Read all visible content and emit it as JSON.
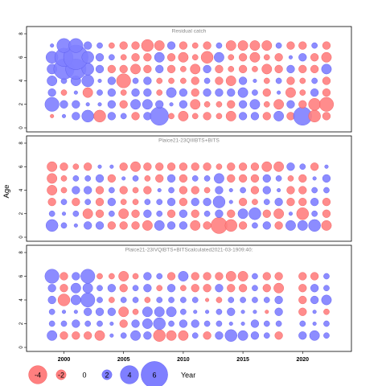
{
  "chart_data": [
    {
      "type": "scatter",
      "title": "Residual catch",
      "x_ticks": [
        "2000",
        "2005",
        "2010",
        "2015",
        "2020"
      ],
      "y_ticks": [
        "0",
        "2",
        "4",
        "6",
        "8"
      ],
      "ylim": [
        0,
        8
      ],
      "years": [
        1999,
        2000,
        2001,
        2002,
        2003,
        2004,
        2005,
        2006,
        2007,
        2008,
        2009,
        2010,
        2011,
        2012,
        2013,
        2014,
        2015,
        2016,
        2017,
        2018,
        2019,
        2020,
        2021,
        2022
      ],
      "ages": [
        1,
        2,
        3,
        4,
        5,
        6,
        7
      ],
      "residuals": {
        "1": [
          -0.5,
          0.5,
          1.5,
          2.5,
          -2.5,
          1.5,
          1.0,
          -1.5,
          1.5,
          4.0,
          -1.0,
          -2.0,
          -1.0,
          -1.5,
          -1.0,
          -2.0,
          1.5,
          1.5,
          -1.5,
          2.0,
          -1.5,
          4.0,
          -2.5,
          -1.5
        ],
        "2": [
          3.0,
          1.5,
          1.5,
          0.5,
          0.5,
          1.5,
          -1.5,
          2.0,
          2.0,
          1.5,
          0.5,
          1.5,
          -2.0,
          -1.0,
          -1.0,
          -1.5,
          1.5,
          2.0,
          -1.0,
          -2.0,
          1.5,
          -1.5,
          -2.5,
          -3.0
        ],
        "3": [
          1.5,
          -1.0,
          0.5,
          -2.0,
          1.0,
          1.5,
          -1.0,
          1.5,
          1.5,
          -1.0,
          2.0,
          1.5,
          -1.5,
          1.5,
          1.5,
          1.5,
          2.0,
          1.0,
          -1.5,
          0.5,
          -2.0,
          -1.0,
          1.5,
          -1.5
        ],
        "4": [
          2.0,
          1.0,
          2.0,
          2.5,
          0.5,
          1.5,
          -3.0,
          1.0,
          1.5,
          -1.0,
          -1.0,
          -1.0,
          -1.5,
          1.0,
          -1.5,
          -2.0,
          1.5,
          0.5,
          -1.0,
          1.0,
          -1.5,
          -1.0,
          1.0,
          -1.5
        ],
        "5": [
          2.0,
          4.5,
          4.5,
          2.5,
          1.5,
          -1.5,
          -1.5,
          -2.0,
          -1.5,
          1.5,
          -1.5,
          -1.0,
          -2.0,
          1.5,
          -1.5,
          -1.0,
          -1.5,
          -1.0,
          -2.0,
          -1.5,
          1.5,
          -1.5,
          -1.5,
          2.0
        ],
        "6": [
          2.5,
          4.0,
          5.5,
          2.5,
          1.5,
          1.0,
          -1.0,
          -1.5,
          -1.5,
          2.0,
          -1.5,
          -2.0,
          -1.0,
          -2.5,
          2.0,
          -1.0,
          -1.5,
          -2.0,
          -1.0,
          -1.5,
          0.5,
          1.5,
          -1.5,
          -2.0
        ],
        "7": [
          0.5,
          3.0,
          3.0,
          1.5,
          1.0,
          -1.0,
          -1.5,
          -1.5,
          -2.5,
          -2.0,
          1.5,
          -1.5,
          -1.0,
          -1.5,
          1.0,
          -2.0,
          -2.0,
          -2.0,
          -2.0,
          1.0,
          -1.5,
          -1.5,
          1.0,
          -1.5
        ]
      }
    },
    {
      "type": "scatter",
      "title": "Plaice21-23QIIIBTS+BITS",
      "x_ticks": [
        "2000",
        "2005",
        "2010",
        "2015",
        "2020"
      ],
      "y_ticks": [
        "0",
        "2",
        "4",
        "6",
        "8"
      ],
      "ylim": [
        0,
        8
      ],
      "years": [
        1999,
        2000,
        2001,
        2002,
        2003,
        2004,
        2005,
        2006,
        2007,
        2008,
        2009,
        2010,
        2011,
        2012,
        2013,
        2014,
        2015,
        2016,
        2017,
        2018,
        2019,
        2020,
        2021,
        2022
      ],
      "ages": [
        1,
        2,
        3,
        4,
        5,
        6
      ],
      "residuals": {
        "1": [
          2.5,
          1.0,
          0.5,
          1.5,
          1.5,
          -1.5,
          -1.5,
          -1.5,
          -2.0,
          2.0,
          1.5,
          1.5,
          -2.0,
          -1.5,
          -3.5,
          -2.5,
          -1.5,
          1.0,
          1.5,
          -1.5,
          2.0,
          2.0,
          2.5,
          -2.0
        ],
        "2": [
          1.0,
          0.5,
          1.0,
          -2.0,
          -1.5,
          1.0,
          -2.0,
          -1.5,
          1.5,
          1.0,
          -1.5,
          1.5,
          -1.5,
          1.0,
          1.5,
          -1.5,
          2.0,
          2.5,
          -1.5,
          -2.0,
          0.5,
          -2.5,
          1.0,
          -1.5
        ],
        "3": [
          -1.5,
          1.0,
          -1.5,
          1.0,
          -1.5,
          1.5,
          -1.0,
          -1.0,
          1.0,
          1.0,
          1.5,
          -1.5,
          1.5,
          1.5,
          2.5,
          0.5,
          -1.5,
          -1.0,
          1.0,
          1.5,
          -1.5,
          -1.5,
          1.5,
          -1.5
        ],
        "4": [
          -2.0,
          -1.0,
          1.5,
          1.5,
          -1.5,
          1.0,
          -1.5,
          -1.0,
          -1.5,
          0.5,
          1.0,
          -1.5,
          -1.5,
          -1.0,
          1.5,
          0.5,
          1.0,
          -1.5,
          1.5,
          0.5,
          -1.5,
          -1.5,
          1.0,
          1.0
        ],
        "5": [
          -2.0,
          -1.0,
          1.0,
          1.0,
          1.5,
          -1.5,
          0.5,
          1.0,
          -1.0,
          -1.5,
          1.5,
          -1.5,
          1.0,
          1.0,
          2.0,
          -1.5,
          -1.5,
          -1.5,
          1.5,
          1.0,
          -1.0,
          -1.5,
          0.5,
          1.5
        ],
        "6": [
          -2.0,
          -1.5,
          -1.0,
          -1.5,
          0.5,
          0.5,
          -1.5,
          -2.0,
          -1.5,
          -1.5,
          -1.5,
          -1.5,
          -1.5,
          -1.5,
          -1.0,
          -1.5,
          -1.5,
          -1.5,
          -2.0,
          -2.0,
          1.5,
          1.0,
          -1.5,
          0.5
        ]
      }
    },
    {
      "type": "scatter",
      "title": "Plaice21-23IVQIBTS+BITScalculated2021-03-1909:40:",
      "x_ticks": [
        "2000",
        "2005",
        "2010",
        "2015",
        "2020"
      ],
      "y_ticks": [
        "0",
        "2",
        "4",
        "6",
        "8"
      ],
      "ylim": [
        0,
        8
      ],
      "years": [
        1999,
        2000,
        2001,
        2002,
        2003,
        2004,
        2005,
        2006,
        2007,
        2008,
        2009,
        2010,
        2011,
        2012,
        2013,
        2014,
        2015,
        2016,
        2017,
        2018,
        2019,
        2020,
        2021,
        2022
      ],
      "ages": [
        1,
        2,
        3,
        4,
        5,
        6
      ],
      "residuals": {
        "1": [
          2.0,
          -1.5,
          -1.5,
          -1.5,
          -2.0,
          0.5,
          1.0,
          2.0,
          1.5,
          -2.5,
          -2.0,
          -2.0,
          1.0,
          -1.5,
          1.5,
          2.5,
          2.0,
          1.5,
          1.0,
          -1.5,
          null,
          1.5,
          2.0,
          1.0
        ],
        "2": [
          1.0,
          1.0,
          1.5,
          1.0,
          1.0,
          0.5,
          -1.5,
          1.5,
          2.0,
          2.5,
          1.0,
          1.5,
          1.5,
          1.0,
          1.0,
          0.5,
          0.5,
          1.5,
          1.0,
          1.0,
          null,
          1.0,
          0.5,
          1.0
        ],
        "3": [
          1.0,
          0.5,
          0.5,
          1.5,
          1.5,
          1.5,
          -2.0,
          -1.0,
          2.0,
          2.0,
          2.0,
          1.0,
          0.5,
          0.5,
          1.0,
          1.5,
          0.5,
          0.5,
          -0.5,
          1.5,
          null,
          -1.5,
          0.5,
          -1.0
        ],
        "4": [
          1.5,
          -2.5,
          2.0,
          3.0,
          1.0,
          -1.0,
          1.0,
          1.0,
          -1.0,
          1.0,
          1.0,
          1.0,
          1.0,
          -0.5,
          -1.0,
          1.0,
          1.0,
          1.0,
          1.0,
          1.5,
          null,
          -1.5,
          1.5,
          2.0
        ],
        "5": [
          1.5,
          -1.5,
          2.0,
          2.0,
          1.0,
          1.5,
          -1.5,
          1.0,
          1.5,
          -1.0,
          1.5,
          -1.0,
          -1.5,
          -1.5,
          1.5,
          -1.5,
          -1.5,
          1.0,
          -1.5,
          -2.0,
          null,
          -1.5,
          1.5,
          1.0
        ],
        "6": [
          3.0,
          -1.5,
          1.5,
          3.0,
          -1.0,
          -1.0,
          -2.0,
          -1.0,
          1.5,
          1.0,
          -1.5,
          2.0,
          -1.5,
          -1.5,
          -1.5,
          -2.0,
          -2.0,
          1.0,
          -1.5,
          -1.5,
          null,
          -1.5,
          -1.5,
          1.0
        ]
      }
    }
  ],
  "ylabel": "Age",
  "colors": {
    "positive": "#7f7fff",
    "positive_stroke": "#5555ee",
    "negative": "#ff7f7f",
    "negative_stroke": "#ee5555"
  },
  "legend": {
    "entries": [
      "-4",
      "-2",
      "0",
      "2",
      "4",
      "6"
    ],
    "values": [
      -4,
      -2,
      0,
      2,
      4,
      6
    ],
    "xlabel": "Year"
  }
}
